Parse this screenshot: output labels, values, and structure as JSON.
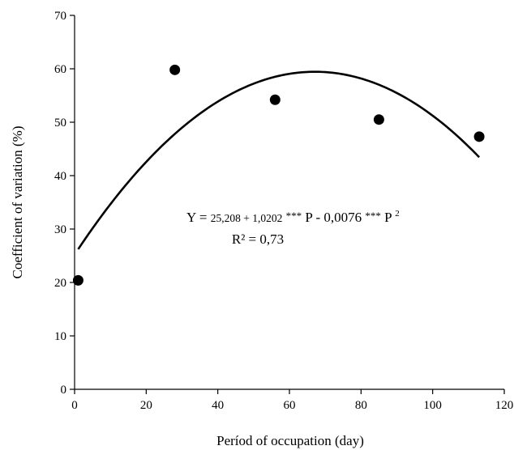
{
  "chart_data": {
    "type": "scatter",
    "title": "",
    "xlabel": "Períod of occupation (day)",
    "ylabel": "Coefficient of variation (%)",
    "xlim": [
      0,
      120
    ],
    "ylim": [
      0,
      70
    ],
    "xticks": [
      "0",
      "20",
      "40",
      "60",
      "80",
      "100",
      "120"
    ],
    "yticks": [
      "0",
      "10",
      "20",
      "30",
      "40",
      "50",
      "60",
      "70"
    ],
    "grid": false,
    "legend": "none",
    "series": [
      {
        "x": [
          1,
          28,
          56,
          85,
          113
        ],
        "y": [
          20.4,
          59.8,
          54.2,
          50.5,
          47.3
        ]
      }
    ],
    "fit": {
      "type": "quadratic",
      "intercept": 25.208,
      "linear": 1.0202,
      "quadratic": -0.0076,
      "x_range": [
        1,
        113
      ]
    },
    "annotations": {
      "equation": {
        "y_part": "Y = ",
        "constants": "25,208 + 1,0202",
        "sig1": "***",
        "p1": "P",
        "minus_coef": "- 0,0076",
        "sig2": "***",
        "p2": "P",
        "exp": "2"
      },
      "r_squared": "R² = 0,73"
    }
  }
}
